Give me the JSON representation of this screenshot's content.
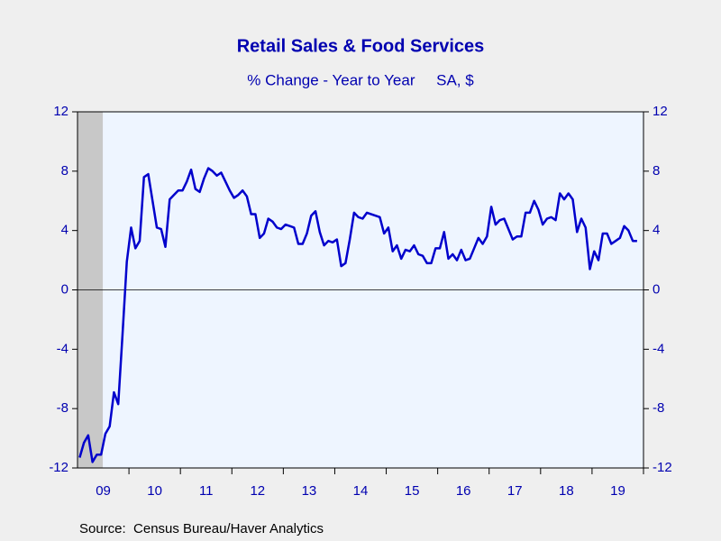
{
  "chart_data": {
    "type": "line",
    "title": "Retail Sales & Food Services",
    "subtitle": "% Change - Year to Year     SA, $",
    "source": "Source:  Census Bureau/Haver Analytics",
    "categories": [
      null,
      null,
      null,
      null,
      null,
      null,
      "09",
      null,
      null,
      null,
      null,
      null,
      null,
      null,
      null,
      null,
      null,
      null,
      "10",
      null,
      null,
      null,
      null,
      null,
      null,
      null,
      null,
      null,
      null,
      null,
      "11",
      null,
      null,
      null,
      null,
      null,
      null,
      null,
      null,
      null,
      null,
      null,
      "12",
      null,
      null,
      null,
      null,
      null,
      null,
      null,
      null,
      null,
      null,
      null,
      "13",
      null,
      null,
      null,
      null,
      null,
      null,
      null,
      null,
      null,
      null,
      null,
      "14",
      null,
      null,
      null,
      null,
      null,
      null,
      null,
      null,
      null,
      null,
      null,
      "15",
      null,
      null,
      null,
      null,
      null,
      null,
      null,
      null,
      null,
      null,
      null,
      "16",
      null,
      null,
      null,
      null,
      null,
      null,
      null,
      null,
      null,
      null,
      null,
      "17",
      null,
      null,
      null,
      null,
      null,
      null,
      null,
      null,
      null,
      null,
      null,
      "18",
      null,
      null,
      null,
      null,
      null,
      null,
      null,
      null,
      null,
      null,
      null,
      "19",
      null,
      null,
      null,
      null
    ],
    "series": [
      {
        "color": "#0000cc",
        "values": [
          -11.3,
          -10.3,
          -9.8,
          -11.6,
          -11.1,
          -11.1,
          -9.7,
          -9.2,
          -6.9,
          -7.7,
          -3.0,
          1.9,
          4.2,
          2.8,
          3.3,
          7.6,
          7.8,
          6.0,
          4.2,
          4.1,
          2.9,
          6.1,
          6.4,
          6.7,
          6.7,
          7.3,
          8.1,
          6.8,
          6.6,
          7.5,
          8.2,
          8.0,
          7.7,
          7.9,
          7.3,
          6.7,
          6.2,
          6.4,
          6.7,
          6.3,
          5.1,
          5.1,
          3.5,
          3.8,
          4.8,
          4.6,
          4.2,
          4.1,
          4.4,
          4.3,
          4.2,
          3.1,
          3.1,
          3.8,
          5.0,
          5.3,
          3.9,
          3.0,
          3.3,
          3.2,
          3.4,
          1.6,
          1.8,
          3.4,
          5.2,
          4.9,
          4.8,
          5.2,
          5.1,
          5.0,
          4.9,
          3.8,
          4.2,
          2.6,
          3.0,
          2.1,
          2.7,
          2.6,
          3.0,
          2.4,
          2.3,
          1.8,
          1.8,
          2.8,
          2.8,
          3.9,
          2.1,
          2.4,
          2.0,
          2.7,
          2.0,
          2.1,
          2.8,
          3.5,
          3.1,
          3.6,
          5.6,
          4.4,
          4.7,
          4.8,
          4.1,
          3.4,
          3.6,
          3.6,
          5.2,
          5.2,
          6.0,
          5.4,
          4.4,
          4.8,
          4.9,
          4.7,
          6.5,
          6.1,
          6.5,
          6.1,
          3.9,
          4.8,
          4.2,
          1.4,
          2.6,
          2.0,
          3.8,
          3.8,
          3.1,
          3.3,
          3.5,
          4.3,
          4.0,
          3.3,
          3.3
        ]
      }
    ],
    "ylim": [
      -12,
      12
    ],
    "yticks": [
      -12,
      -8,
      -4,
      0,
      4,
      8,
      12
    ],
    "y2lim": [
      -12,
      12
    ],
    "y2ticks": [
      -12,
      -8,
      -4,
      0,
      4,
      8,
      12
    ],
    "grid": false
  }
}
